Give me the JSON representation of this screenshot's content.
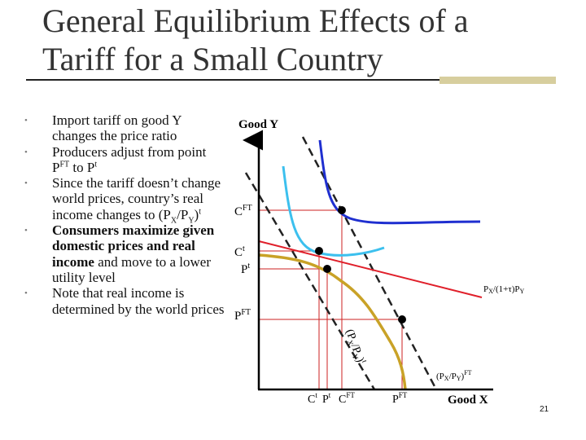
{
  "slide": {
    "title_line1": "General Equilibrium Effects of a",
    "title_line2": "Tariff for a Small Country",
    "page_number": "21"
  },
  "bullets": [
    {
      "text": "Import tariff on good Y changes the price ratio",
      "bold": false
    },
    {
      "text": "Producers adjust from point P",
      "sup1": "FT",
      "mid": " to P",
      "sup2": "t",
      "bold": false
    },
    {
      "text": "Since the tariff doesn’t change world prices, country’s real income changes to (P",
      "sub1": "X",
      "mid": "/P",
      "sub2": "Y",
      "end": ")",
      "sup1": "t",
      "bold": false
    },
    {
      "text": "Consumers maximize given domestic prices and real income",
      "rest": " and move to a lower utility level",
      "bold": true
    },
    {
      "text": "Note that real income is determined by the world prices",
      "bold": false
    }
  ],
  "diagram": {
    "y_axis_label": "Good Y",
    "x_axis_label": "Good X",
    "y_labels": {
      "cft": "C",
      "cft_sup": "FT",
      "ct": "C",
      "ct_sup": "t",
      "pt": "P",
      "pt_sup": "t",
      "pft": "P",
      "pft_sup": "FT"
    },
    "x_labels": {
      "ct": "C",
      "ct_sup": "t",
      "pt": "P",
      "pt_sup": "t",
      "cft": "C",
      "cft_sup": "FT",
      "pft": "P",
      "pft_sup": "FT"
    },
    "line_labels": {
      "domestic_price": "P",
      "domestic_price_sub1": "X",
      "domestic_price_mid": "/(1+τ)P",
      "domestic_price_sub2": "Y",
      "world_price": "(P",
      "world_price_sub1": "X",
      "world_price_mid": "/P",
      "world_price_sub2": "Y",
      "world_price_end": ")",
      "world_price_sup": "FT",
      "tariff_price": "(P",
      "tariff_price_sub1": "X",
      "tariff_price_mid": "/P",
      "tariff_price_sub2": "Y",
      "tariff_price_end": ")",
      "tariff_price_sup": "t"
    },
    "colors": {
      "ppf": "#c9a227",
      "indifference_high": "#1f2fd0",
      "indifference_low": "#3cc0ee",
      "domestic_line": "#e01f2a",
      "guide_lines": "#cc2222",
      "axis": "#000000",
      "point": "#000000"
    }
  }
}
